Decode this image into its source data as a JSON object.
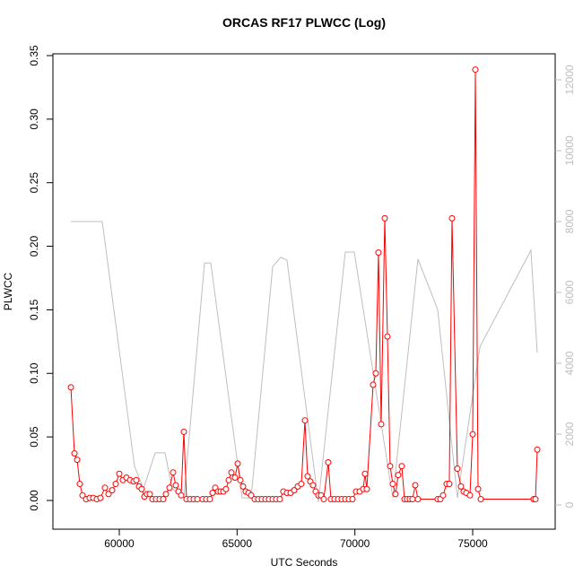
{
  "chart_data": {
    "type": "line",
    "title": "ORCAS RF17 PLWCC (Log)",
    "xlabel": "UTC Seconds",
    "ylabel": "PLWCC",
    "xlim": [
      57183,
      78502
    ],
    "ylim": [
      -0.0226,
      0.3514
    ],
    "y2lim": [
      -684,
      12734
    ],
    "xticks": [
      60000,
      65000,
      70000,
      75000
    ],
    "yticks": [
      {
        "value": 0,
        "label": "0.00"
      },
      {
        "value": 0.05,
        "label": "0.05"
      },
      {
        "value": 0.1,
        "label": "0.10"
      },
      {
        "value": 0.15,
        "label": "0.15"
      },
      {
        "value": 0.2,
        "label": "0.20"
      },
      {
        "value": 0.25,
        "label": "0.25"
      },
      {
        "value": 0.3,
        "label": "0.30"
      },
      {
        "value": 0.35,
        "label": "0.35"
      }
    ],
    "y2ticks": [
      0,
      2000,
      4000,
      6000,
      8000,
      10000,
      12000
    ],
    "y2color": "#bebebe",
    "series": [
      {
        "color": "#bebebe",
        "axis": "y2",
        "markers": false,
        "x": [
          57945,
          59277,
          60647,
          61028,
          61523,
          61941,
          62246,
          62741,
          63616,
          63883,
          65215,
          65596,
          66509,
          66852,
          67118,
          68451,
          69593,
          69973,
          71610,
          72676,
          73514,
          74351,
          75303,
          75341,
          77473,
          77739
        ],
        "values": [
          8000,
          8000,
          1090,
          460,
          1470,
          1470,
          460,
          200,
          6830,
          6830,
          200,
          200,
          6730,
          6990,
          6910,
          80,
          7140,
          7140,
          200,
          6940,
          5520,
          200,
          4430,
          4510,
          7190,
          4300
        ]
      },
      {
        "color": "#ff0000",
        "axis": "y",
        "markers": true,
        "x": [
          57945,
          58097,
          58211,
          58325,
          58439,
          58592,
          58744,
          58896,
          59048,
          59201,
          59391,
          59543,
          59696,
          59848,
          60000,
          60152,
          60305,
          60457,
          60609,
          60723,
          60837,
          60952,
          61066,
          61180,
          61294,
          61408,
          61561,
          61713,
          61865,
          61979,
          62132,
          62284,
          62398,
          62512,
          62627,
          62741,
          62855,
          63007,
          63159,
          63312,
          63540,
          63692,
          63845,
          63959,
          64073,
          64187,
          64302,
          64416,
          64530,
          64644,
          64758,
          64911,
          65025,
          65139,
          65253,
          65368,
          65482,
          65596,
          65748,
          65900,
          66053,
          66205,
          66358,
          66510,
          66662,
          66814,
          66966,
          67118,
          67271,
          67423,
          67575,
          67727,
          67880,
          67994,
          68108,
          68222,
          68336,
          68451,
          68565,
          68679,
          68869,
          68984,
          69136,
          69288,
          69441,
          69593,
          69745,
          69898,
          70050,
          70202,
          70354,
          70430,
          70506,
          70773,
          70887,
          71001,
          71116,
          71268,
          71382,
          71496,
          71610,
          71725,
          71839,
          71991,
          72105,
          72219,
          72333,
          72447,
          72561,
          72676,
          73514,
          73628,
          73742,
          73894,
          74008,
          74123,
          74351,
          74503,
          74617,
          74731,
          74884,
          75000,
          75114,
          75228,
          75343,
          77589,
          77665,
          77741
        ],
        "values": [
          0.089,
          0.037,
          0.032,
          0.013,
          0.004,
          0.001,
          0.002,
          0.002,
          0.001,
          0.002,
          0.01,
          0.005,
          0.008,
          0.013,
          0.021,
          0.016,
          0.018,
          0.016,
          0.015,
          0.016,
          0.011,
          0.009,
          0.003,
          0.005,
          0.005,
          0.001,
          0.001,
          0.001,
          0.001,
          0.005,
          0.01,
          0.022,
          0.012,
          0.007,
          0.004,
          0.054,
          0.001,
          0.001,
          0.001,
          0.001,
          0.001,
          0.001,
          0.001,
          0.006,
          0.01,
          0.007,
          0.007,
          0.007,
          0.009,
          0.016,
          0.022,
          0.018,
          0.029,
          0.016,
          0.011,
          0.007,
          0.006,
          0.004,
          0.001,
          0.001,
          0.001,
          0.001,
          0.001,
          0.001,
          0.001,
          0.001,
          0.007,
          0.006,
          0.006,
          0.008,
          0.011,
          0.013,
          0.063,
          0.019,
          0.015,
          0.012,
          0.007,
          0.004,
          0.004,
          0.001,
          0.03,
          0.001,
          0.001,
          0.001,
          0.001,
          0.001,
          0.001,
          0.001,
          0.007,
          0.007,
          0.009,
          0.021,
          0.009,
          0.091,
          0.1,
          0.195,
          0.06,
          0.222,
          0.129,
          0.027,
          0.013,
          0.005,
          0.02,
          0.027,
          0.001,
          0.001,
          0.001,
          0.001,
          0.012,
          0.001,
          0.001,
          0.001,
          0.004,
          0.013,
          0.013,
          0.222,
          0.025,
          0.011,
          0.007,
          0.006,
          0.004,
          0.052,
          0.339,
          0.009,
          0.001,
          0.001,
          0.001,
          0.04
        ]
      }
    ]
  }
}
